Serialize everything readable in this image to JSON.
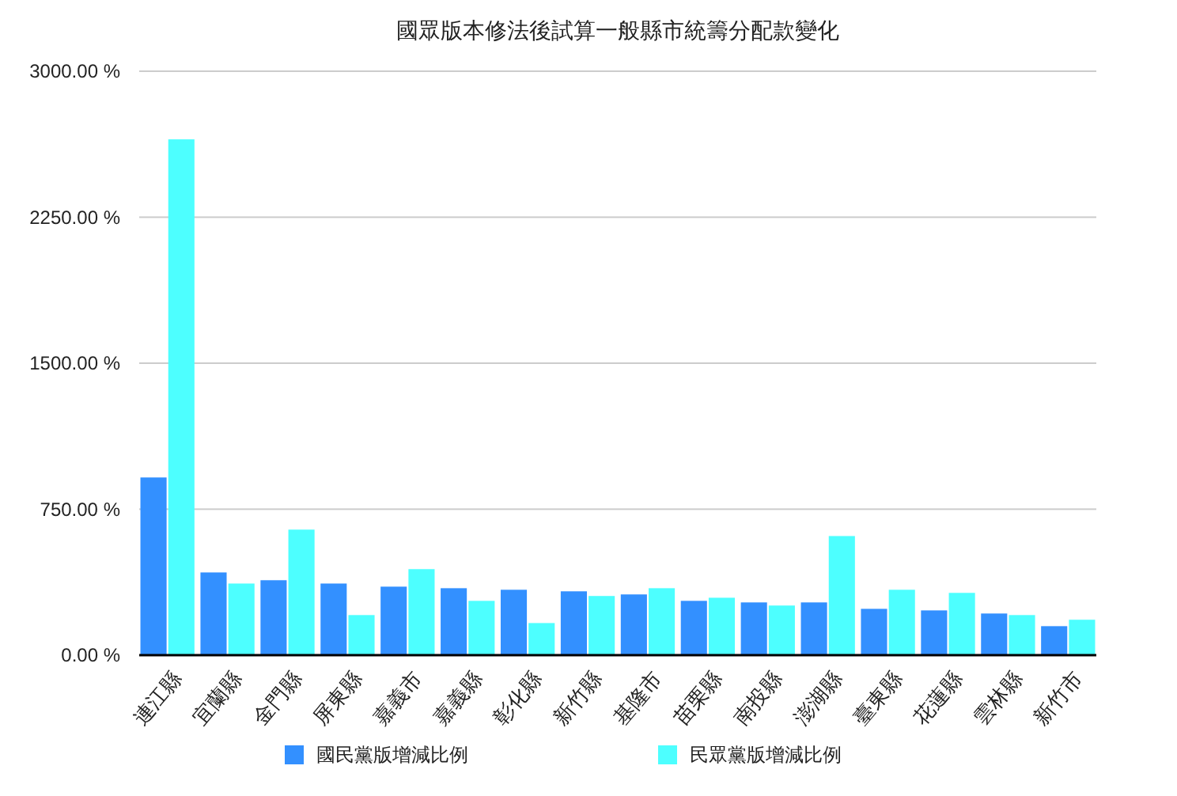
{
  "chart_data": {
    "type": "bar",
    "title": "國眾版本修法後試算一般縣市統籌分配款變化",
    "categories": [
      "連江縣",
      "宜蘭縣",
      "金門縣",
      "屏東縣",
      "嘉義市",
      "嘉義縣",
      "彰化縣",
      "新竹縣",
      "基隆市",
      "苗栗縣",
      "南投縣",
      "澎湖縣",
      "臺東縣",
      "花蓮縣",
      "雲林縣",
      "新竹市"
    ],
    "series": [
      {
        "name": "國民黨版增減比例",
        "color": "#3390ff",
        "values": [
          913,
          425,
          385,
          368,
          352,
          344,
          336,
          328,
          312,
          279,
          271,
          271,
          238,
          230,
          214,
          149
        ]
      },
      {
        "name": "民眾黨版增減比例",
        "color": "#4dffff",
        "values": [
          2650,
          368,
          645,
          206,
          442,
          279,
          165,
          304,
          344,
          295,
          255,
          612,
          336,
          320,
          206,
          182
        ]
      }
    ],
    "ylim": [
      0,
      3000
    ],
    "yticks": [
      {
        "value": 0,
        "label": "0.00 %"
      },
      {
        "value": 750,
        "label": "750.00 %"
      },
      {
        "value": 1500,
        "label": "1500.00 %"
      },
      {
        "value": 2250,
        "label": "2250.00 %"
      },
      {
        "value": 3000,
        "label": "3000.00 %"
      }
    ],
    "grid": "y",
    "legend": "bottom"
  }
}
